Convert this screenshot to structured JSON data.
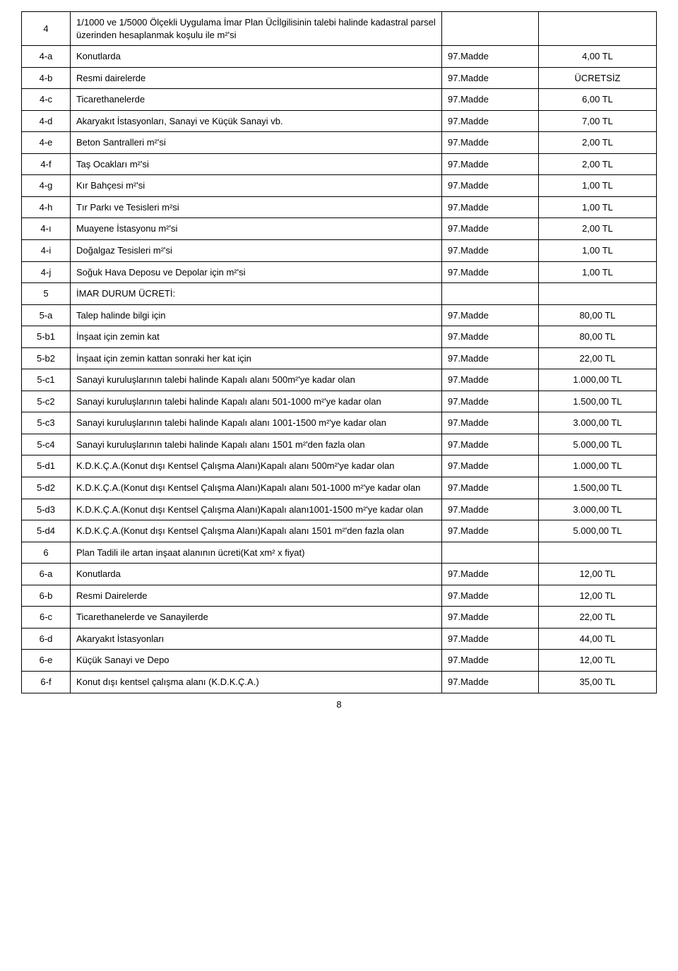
{
  "rows": [
    {
      "id": "4",
      "label": "1/1000 ve 1/5000 Ölçekli Uygulama İmar Plan Ücİlgilisinin talebi halinde kadastral parsel üzerinden hesaplanmak koşulu ile m²'si",
      "ref": "",
      "fee": ""
    },
    {
      "id": "4-a",
      "label": "Konutlarda",
      "ref": "97.Madde",
      "fee": "4,00 TL"
    },
    {
      "id": "4-b",
      "label": "Resmi dairelerde",
      "ref": "97.Madde",
      "fee": "ÜCRETSİZ"
    },
    {
      "id": "4-c",
      "label": "Ticarethanelerde",
      "ref": "97.Madde",
      "fee": "6,00 TL"
    },
    {
      "id": "4-d",
      "label": "Akaryakıt İstasyonları, Sanayi ve Küçük Sanayi vb.",
      "ref": "97.Madde",
      "fee": "7,00 TL"
    },
    {
      "id": "4-e",
      "label": "Beton Santralleri m²'si",
      "ref": "97.Madde",
      "fee": "2,00 TL"
    },
    {
      "id": "4-f",
      "label": "Taş Ocakları m²'si",
      "ref": "97.Madde",
      "fee": "2,00 TL"
    },
    {
      "id": "4-g",
      "label": "Kır Bahçesi m²'si",
      "ref": "97.Madde",
      "fee": "1,00 TL"
    },
    {
      "id": "4-h",
      "label": "Tır Parkı ve Tesisleri m²si",
      "ref": "97.Madde",
      "fee": "1,00 TL"
    },
    {
      "id": "4-ı",
      "label": "Muayene İstasyonu m²'si",
      "ref": "97.Madde",
      "fee": "2,00 TL"
    },
    {
      "id": "4-i",
      "label": "Doğalgaz Tesisleri m²'si",
      "ref": "97.Madde",
      "fee": "1,00 TL"
    },
    {
      "id": "4-j",
      "label": "Soğuk Hava Deposu ve Depolar için m²'si",
      "ref": "97.Madde",
      "fee": "1,00 TL"
    },
    {
      "id": "5",
      "label": "İMAR DURUM ÜCRETİ:",
      "ref": "",
      "fee": ""
    },
    {
      "id": "5-a",
      "label": "Talep halinde bilgi için",
      "ref": "97.Madde",
      "fee": "80,00 TL"
    },
    {
      "id": "5-b1",
      "label": "İnşaat için zemin kat",
      "ref": "97.Madde",
      "fee": "80,00 TL"
    },
    {
      "id": "5-b2",
      "label": "İnşaat için zemin kattan sonraki her kat için",
      "ref": "97.Madde",
      "fee": "22,00 TL"
    },
    {
      "id": "5-c1",
      "label": "Sanayi kuruluşlarının talebi halinde Kapalı alanı 500m²'ye kadar olan",
      "ref": "97.Madde",
      "fee": "1.000,00 TL"
    },
    {
      "id": "5-c2",
      "label": "Sanayi kuruluşlarının talebi halinde Kapalı alanı 501-1000 m²'ye kadar olan",
      "ref": "97.Madde",
      "fee": "1.500,00 TL"
    },
    {
      "id": "5-c3",
      "label": "Sanayi kuruluşlarının talebi halinde Kapalı alanı 1001-1500 m²'ye kadar olan",
      "ref": "97.Madde",
      "fee": "3.000,00 TL"
    },
    {
      "id": "5-c4",
      "label": "Sanayi kuruluşlarının talebi halinde Kapalı alanı 1501 m²'den fazla olan",
      "ref": "97.Madde",
      "fee": "5.000,00 TL"
    },
    {
      "id": "5-d1",
      "label": "K.D.K.Ç.A.(Konut dışı Kentsel Çalışma Alanı)Kapalı alanı 500m²'ye kadar olan",
      "ref": "97.Madde",
      "fee": "1.000,00 TL"
    },
    {
      "id": "5-d2",
      "label": "K.D.K.Ç.A.(Konut dışı Kentsel Çalışma Alanı)Kapalı alanı 501-1000 m²'ye kadar olan",
      "ref": "97.Madde",
      "fee": "1.500,00 TL"
    },
    {
      "id": "5-d3",
      "label": "K.D.K.Ç.A.(Konut dışı Kentsel Çalışma Alanı)Kapalı alanı1001-1500 m²'ye kadar olan",
      "ref": "97.Madde",
      "fee": "3.000,00 TL"
    },
    {
      "id": "5-d4",
      "label": "K.D.K.Ç.A.(Konut dışı Kentsel Çalışma Alanı)Kapalı alanı 1501 m²'den fazla olan",
      "ref": "97.Madde",
      "fee": "5.000,00 TL"
    },
    {
      "id": "6",
      "label": "Plan Tadili ile artan inşaat alanının ücreti(Kat xm² x fiyat)",
      "ref": "",
      "fee": ""
    },
    {
      "id": "6-a",
      "label": "Konutlarda",
      "ref": "97.Madde",
      "fee": "12,00 TL"
    },
    {
      "id": "6-b",
      "label": "Resmi Dairelerde",
      "ref": "97.Madde",
      "fee": "12,00 TL"
    },
    {
      "id": "6-c",
      "label": "Ticarethanelerde ve Sanayilerde",
      "ref": "97.Madde",
      "fee": "22,00 TL"
    },
    {
      "id": "6-d",
      "label": "Akaryakıt İstasyonları",
      "ref": "97.Madde",
      "fee": "44,00 TL"
    },
    {
      "id": "6-e",
      "label": "Küçük Sanayi ve Depo",
      "ref": "97.Madde",
      "fee": "12,00 TL"
    },
    {
      "id": "6-f",
      "label": "Konut dışı kentsel çalışma alanı (K.D.K.Ç.A.)",
      "ref": "97.Madde",
      "fee": "35,00 TL"
    }
  ],
  "page_number": "8"
}
